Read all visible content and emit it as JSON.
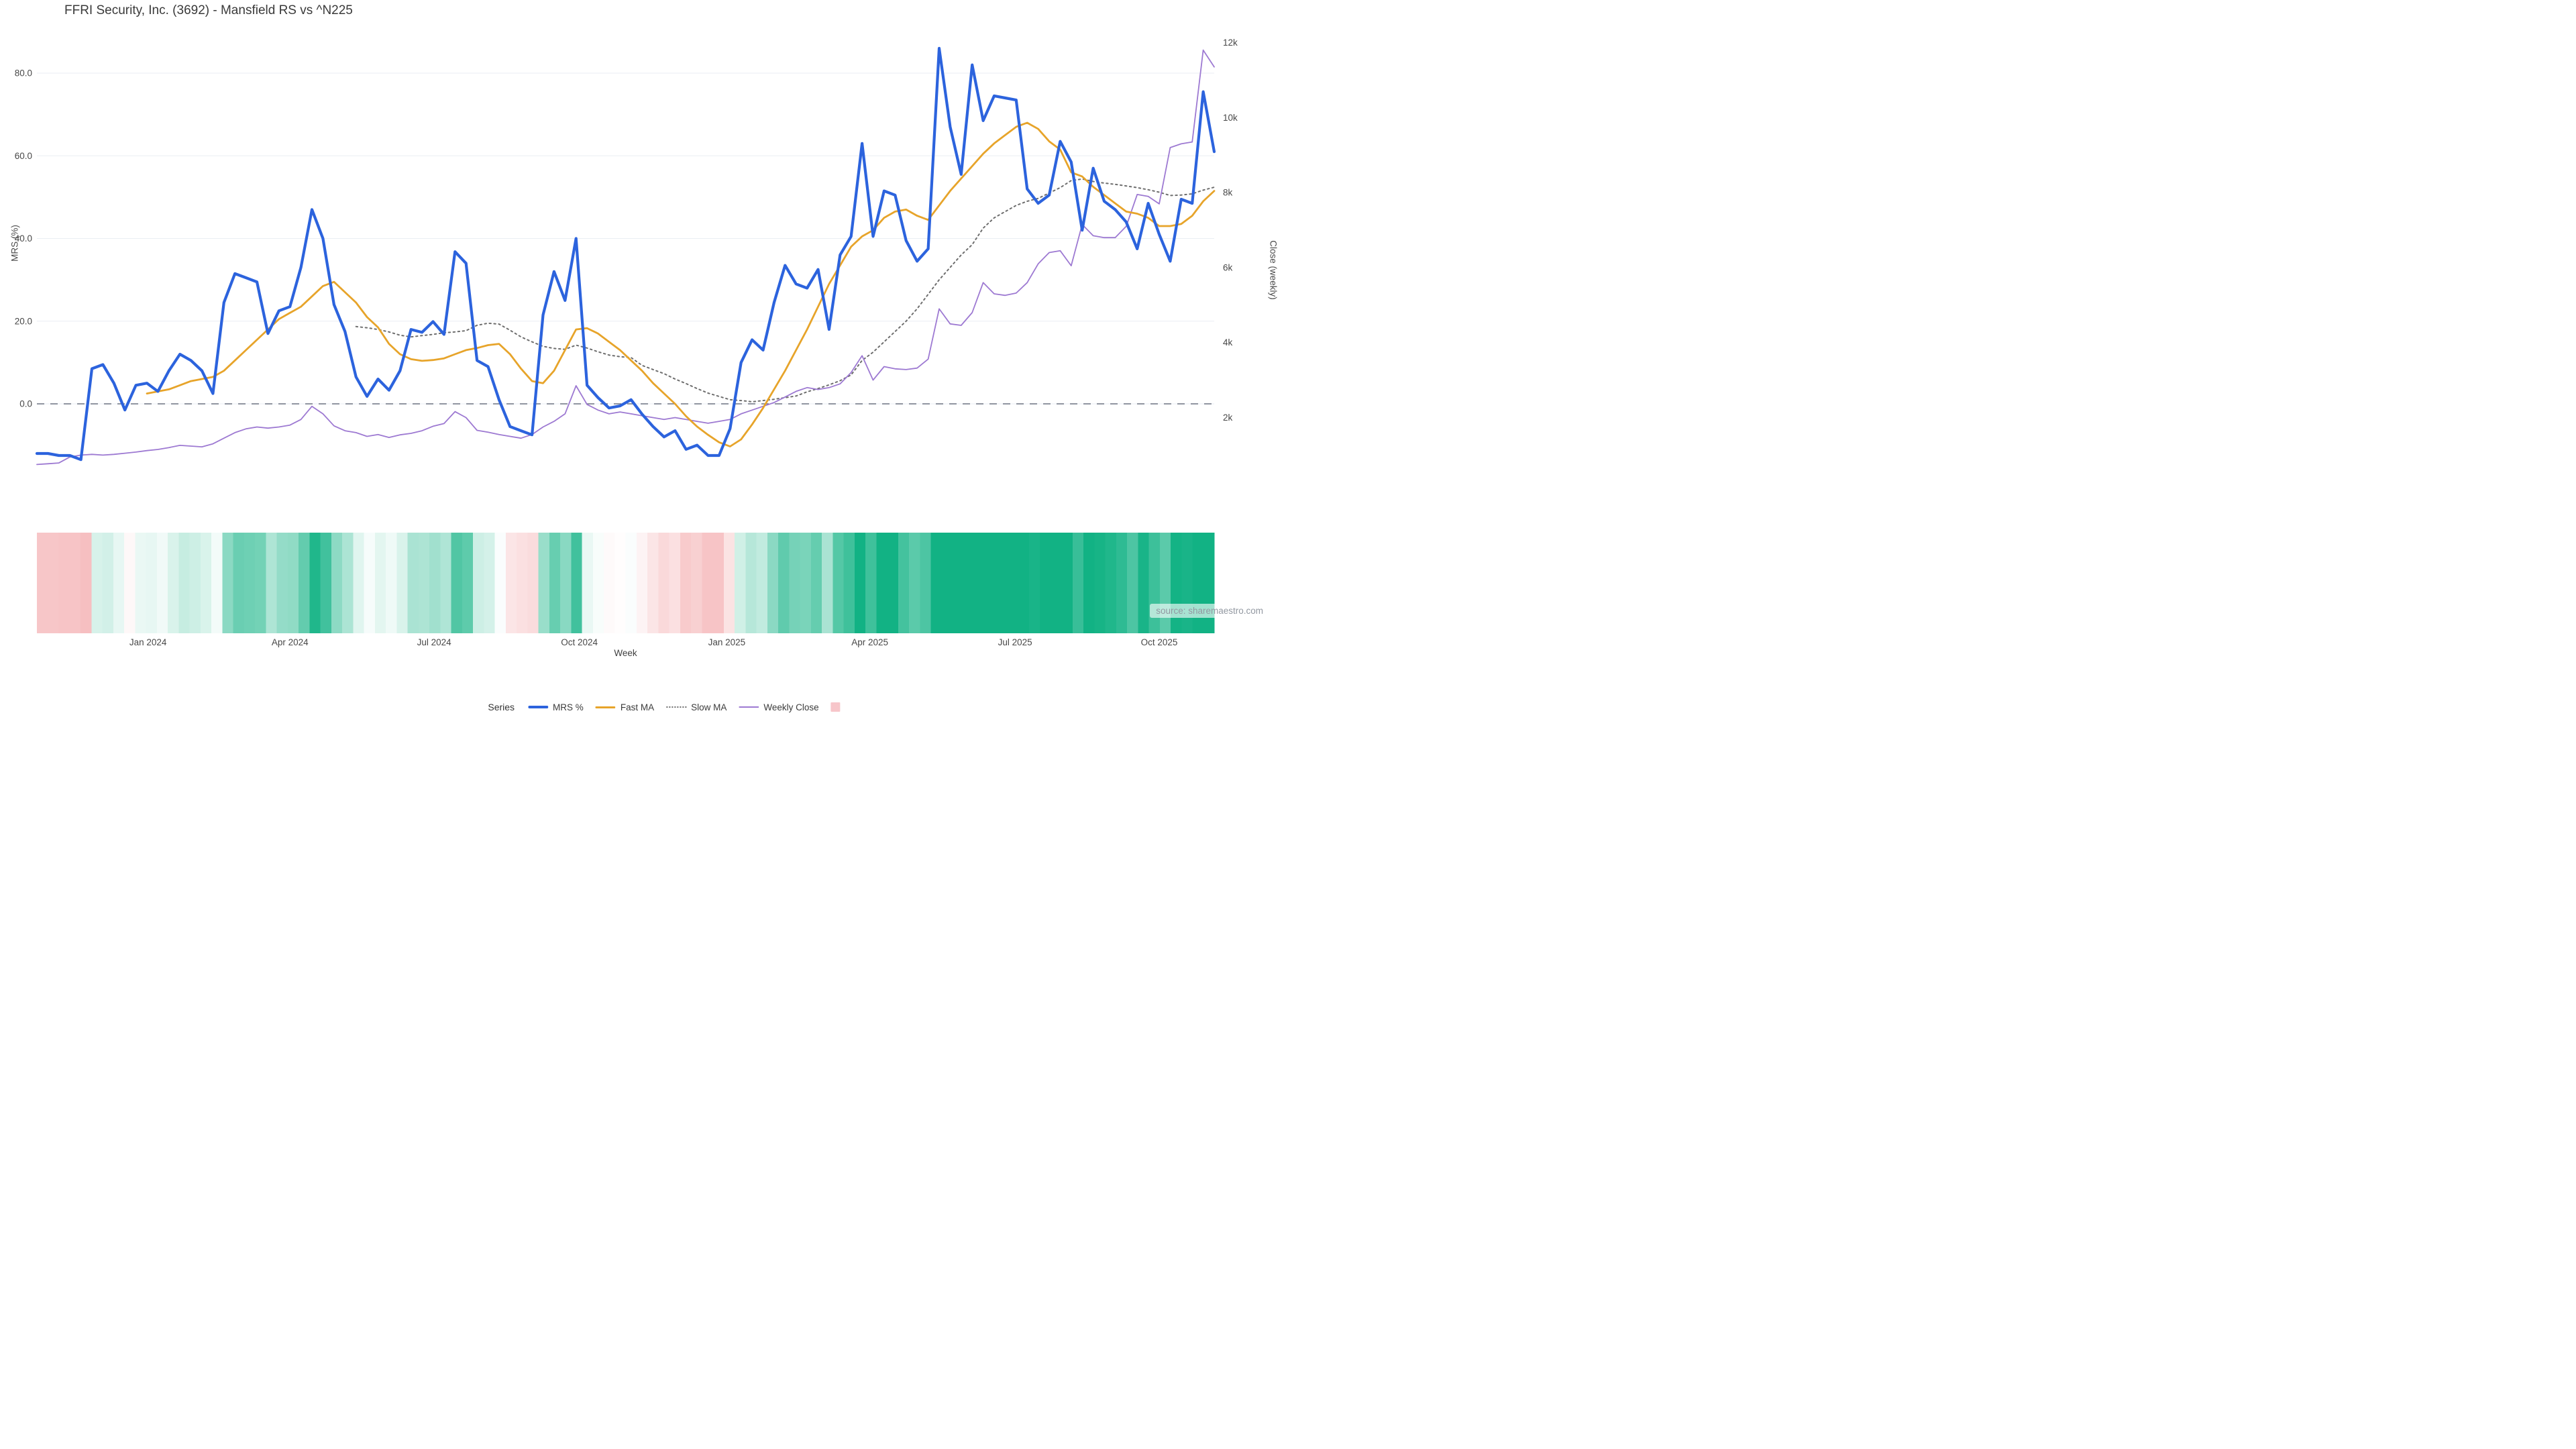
{
  "title": "FFRI Security, Inc. (3692) - Mansfield RS vs ^N225",
  "source_note": "source: sharemaestro.com",
  "axes": {
    "x_title": "Week",
    "y_left_title": "MRS (%)",
    "y_right_title": "Close (weekly)",
    "y_left_ticks": [
      {
        "label": "0.0",
        "value": 0
      },
      {
        "label": "20.0",
        "value": 20
      },
      {
        "label": "40.0",
        "value": 40
      },
      {
        "label": "60.0",
        "value": 60
      },
      {
        "label": "80.0",
        "value": 80
      }
    ],
    "y_right_ticks": [
      {
        "label": "2k",
        "value": 2
      },
      {
        "label": "4k",
        "value": 4
      },
      {
        "label": "6k",
        "value": 6
      },
      {
        "label": "8k",
        "value": 8
      },
      {
        "label": "10k",
        "value": 10
      },
      {
        "label": "12k",
        "value": 12
      }
    ],
    "x_ticks": [
      {
        "label": "Jan 2024",
        "week": 10.1
      },
      {
        "label": "Apr 2024",
        "week": 23.0
      },
      {
        "label": "Jul 2024",
        "week": 36.1
      },
      {
        "label": "Oct 2024",
        "week": 49.3
      },
      {
        "label": "Jan 2025",
        "week": 62.7
      },
      {
        "label": "Apr 2025",
        "week": 75.7
      },
      {
        "label": "Jul 2025",
        "week": 88.9
      },
      {
        "label": "Oct 2025",
        "week": 102.0
      }
    ]
  },
  "legend": {
    "title": "Series",
    "items": [
      {
        "label": "MRS %",
        "color": "#2c63dd",
        "marker": "line-thick"
      },
      {
        "label": "Fast MA",
        "color": "#e7a42a",
        "marker": "line"
      },
      {
        "label": "Slow MA",
        "color": "#6e6e6e",
        "marker": "line-dotted"
      },
      {
        "label": "Weekly Close",
        "color": "#9d79d2",
        "marker": "line-thin"
      },
      {
        "label": "",
        "color": "#f7c6ca",
        "marker": "swatch"
      }
    ]
  },
  "chart_data": {
    "type": "line",
    "x_start_date": "2023-10-30",
    "x_step_days": 7,
    "weeks": 108,
    "ylim_left": [
      -20,
      90
    ],
    "ylim_right": [
      0,
      12.5
    ],
    "grid": "horizontal",
    "zero_line": 0,
    "colors": {
      "grid": "#eaeef3",
      "zero_dash": "#6b7280",
      "tick_text": "#474747",
      "heat_positive": "#12b284",
      "heat_negative": "#f5b8ba"
    },
    "heatmap": {
      "basis": "MRS %",
      "positive_color": "#12b284",
      "negative_color": "#f5b8ba",
      "positive_max": 50,
      "negative_max": 15
    },
    "series": [
      {
        "name": "MRS %",
        "axis": "left",
        "color": "#2c63dd",
        "style": "solid",
        "width": 4.2,
        "start_week": 0,
        "values": [
          -12,
          -12,
          -12.5,
          -12.5,
          -13.5,
          8.5,
          9.5,
          5,
          -1.5,
          4.5,
          5,
          3,
          8,
          12,
          10.5,
          8,
          2.5,
          24.5,
          31.5,
          30.5,
          29.5,
          17,
          22.5,
          23.5,
          33,
          47,
          40,
          24,
          17.5,
          6.5,
          1.8,
          6,
          3.3,
          8,
          18,
          17.3,
          19.9,
          16.8,
          36.8,
          34,
          10.5,
          9,
          1,
          -5.5,
          -6.5,
          -7.5,
          21.5,
          32,
          25,
          40,
          4.5,
          1.5,
          -1,
          -0.5,
          1,
          -2.5,
          -5.5,
          -8,
          -6.5,
          -11,
          -10,
          -12.5,
          -12.5,
          -6,
          10,
          15.5,
          13,
          24.5,
          33.5,
          29,
          28,
          32.5,
          18,
          36,
          40.5,
          63,
          40.5,
          51.5,
          50.5,
          39.5,
          34.5,
          37.5,
          86,
          67,
          55.5,
          82,
          68.5,
          74.5,
          74,
          73.5,
          52,
          48.5,
          50.5,
          63.5,
          58.5,
          42,
          57,
          49,
          47,
          44,
          37.5,
          48.5,
          41,
          34.5,
          49.5,
          48.5,
          75.5,
          61
        ]
      },
      {
        "name": "Fast MA",
        "axis": "left",
        "color": "#e7a42a",
        "style": "solid",
        "width": 2.8,
        "start_week": 10,
        "values": [
          2.5,
          3,
          3.5,
          4.5,
          5.5,
          6,
          6.5,
          8,
          10.5,
          13,
          15.5,
          18,
          20.5,
          22,
          23.5,
          26,
          28.5,
          29.5,
          27,
          24.5,
          21,
          18.5,
          14.5,
          12,
          10.8,
          10.4,
          10.6,
          11,
          12,
          13,
          13.5,
          14.2,
          14.5,
          12,
          8.5,
          5.5,
          5,
          8,
          13,
          18,
          18.3,
          17,
          15,
          13,
          10.5,
          8,
          5,
          2.5,
          0,
          -3,
          -5.5,
          -7.5,
          -9.3,
          -10.3,
          -8.6,
          -5,
          -1,
          3.5,
          8,
          13,
          18,
          23.5,
          29,
          33.5,
          38,
          40.5,
          42,
          45,
          46.5,
          47,
          45.5,
          44.5,
          48,
          51.5,
          54.5,
          57.5,
          60.5,
          63,
          65,
          67,
          68,
          66.5,
          63.5,
          61.5,
          56,
          55,
          52.5,
          50.5,
          48.5,
          46.5,
          46,
          45,
          43,
          43,
          43.5,
          45.5,
          49,
          51.5
        ]
      },
      {
        "name": "Slow MA",
        "axis": "left",
        "color": "#6e6e6e",
        "style": "dotted",
        "width": 2,
        "start_week": 29,
        "values": [
          18.7,
          18.4,
          18,
          17.4,
          16.6,
          16.2,
          16.5,
          16.8,
          17.2,
          17.4,
          17.7,
          19,
          19.5,
          19.3,
          17.8,
          16.2,
          15,
          13.9,
          13.4,
          13.2,
          14.2,
          13.5,
          12.6,
          11.8,
          11.4,
          11.2,
          9.3,
          8.3,
          7.3,
          6,
          4.9,
          3.7,
          2.6,
          1.8,
          1,
          0.8,
          0.5,
          0.8,
          1.1,
          1.5,
          1.9,
          2.9,
          3.7,
          4.6,
          5.6,
          7,
          10.5,
          12.5,
          15,
          17.5,
          20,
          23,
          26.5,
          30,
          33,
          36,
          38.5,
          42.5,
          45,
          46.5,
          48,
          49,
          49.7,
          51,
          52.3,
          54,
          54.4,
          53.8,
          53.4,
          53.1,
          52.7,
          52.3,
          51.8,
          51.2,
          50.4,
          50.5,
          50.8,
          51.7,
          52.4
        ]
      },
      {
        "name": "Weekly Close",
        "axis": "right",
        "color": "#9d79d2",
        "style": "solid",
        "width": 1.8,
        "start_week": 0,
        "values": [
          0.75,
          0.77,
          0.79,
          0.95,
          1.0,
          1.02,
          1.0,
          1.02,
          1.05,
          1.08,
          1.12,
          1.15,
          1.2,
          1.26,
          1.24,
          1.22,
          1.3,
          1.45,
          1.6,
          1.7,
          1.75,
          1.72,
          1.75,
          1.8,
          1.95,
          2.3,
          2.1,
          1.78,
          1.65,
          1.6,
          1.5,
          1.55,
          1.47,
          1.54,
          1.58,
          1.65,
          1.77,
          1.84,
          2.16,
          2.0,
          1.66,
          1.61,
          1.55,
          1.5,
          1.45,
          1.55,
          1.75,
          1.9,
          2.1,
          2.85,
          2.35,
          2.2,
          2.1,
          2.15,
          2.1,
          2.05,
          2.0,
          1.95,
          2.0,
          1.95,
          1.9,
          1.85,
          1.9,
          1.95,
          2.1,
          2.2,
          2.3,
          2.4,
          2.55,
          2.7,
          2.8,
          2.75,
          2.8,
          2.9,
          3.2,
          3.65,
          3.0,
          3.36,
          3.3,
          3.28,
          3.32,
          3.56,
          4.9,
          4.5,
          4.46,
          4.8,
          5.6,
          5.3,
          5.26,
          5.32,
          5.6,
          6.1,
          6.4,
          6.45,
          6.05,
          7.15,
          6.85,
          6.8,
          6.8,
          7.1,
          7.95,
          7.9,
          7.7,
          9.2,
          9.3,
          9.35,
          11.8,
          11.35
        ]
      }
    ]
  }
}
